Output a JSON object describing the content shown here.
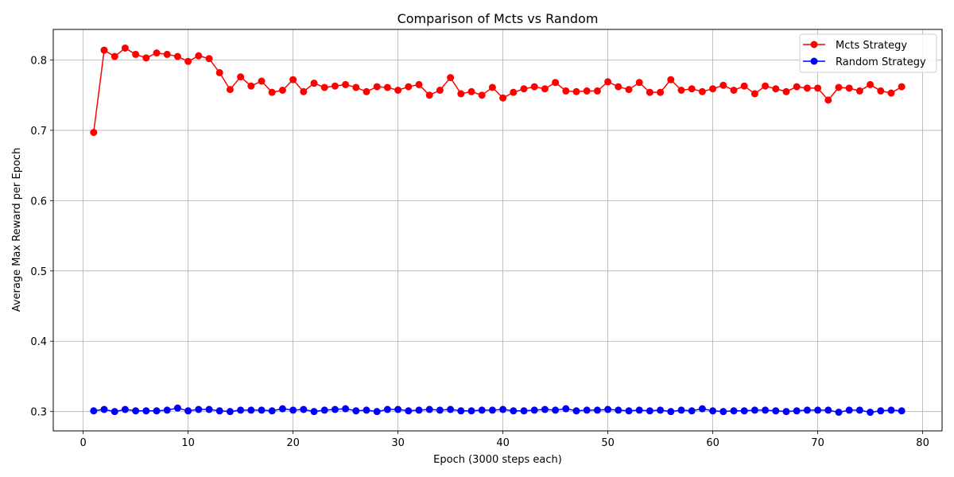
{
  "chart_data": {
    "type": "line",
    "title": "Comparison of Mcts vs Random",
    "xlabel": "Epoch (3000 steps each)",
    "ylabel": "Average Max Reward per Epoch",
    "xlim": [
      -2.85,
      81.85
    ],
    "ylim": [
      0.2725,
      0.8435
    ],
    "xticks": [
      0,
      10,
      20,
      30,
      40,
      50,
      60,
      70,
      80
    ],
    "yticks": [
      0.3,
      0.4,
      0.5,
      0.6,
      0.7,
      0.8
    ],
    "ytick_labels": [
      "0.3",
      "0.4",
      "0.5",
      "0.6",
      "0.7",
      "0.8"
    ],
    "grid": true,
    "legend_position": "top-right",
    "x": [
      1,
      2,
      3,
      4,
      5,
      6,
      7,
      8,
      9,
      10,
      11,
      12,
      13,
      14,
      15,
      16,
      17,
      18,
      19,
      20,
      21,
      22,
      23,
      24,
      25,
      26,
      27,
      28,
      29,
      30,
      31,
      32,
      33,
      34,
      35,
      36,
      37,
      38,
      39,
      40,
      41,
      42,
      43,
      44,
      45,
      46,
      47,
      48,
      49,
      50,
      51,
      52,
      53,
      54,
      55,
      56,
      57,
      58,
      59,
      60,
      61,
      62,
      63,
      64,
      65,
      66,
      67,
      68,
      69,
      70,
      71,
      72,
      73,
      74,
      75,
      76,
      77,
      78
    ],
    "series": [
      {
        "name": "Mcts Strategy",
        "color": "#ff0000",
        "values": [
          0.697,
          0.814,
          0.805,
          0.817,
          0.808,
          0.803,
          0.81,
          0.808,
          0.805,
          0.798,
          0.806,
          0.802,
          0.782,
          0.758,
          0.776,
          0.763,
          0.77,
          0.754,
          0.757,
          0.772,
          0.755,
          0.767,
          0.761,
          0.763,
          0.765,
          0.761,
          0.755,
          0.762,
          0.761,
          0.757,
          0.762,
          0.765,
          0.75,
          0.757,
          0.775,
          0.752,
          0.755,
          0.75,
          0.761,
          0.746,
          0.754,
          0.759,
          0.762,
          0.759,
          0.768,
          0.756,
          0.755,
          0.756,
          0.756,
          0.769,
          0.762,
          0.758,
          0.768,
          0.754,
          0.754,
          0.772,
          0.757,
          0.759,
          0.755,
          0.759,
          0.764,
          0.757,
          0.763,
          0.752,
          0.763,
          0.759,
          0.755,
          0.762,
          0.76,
          0.76,
          0.743,
          0.761,
          0.76,
          0.756,
          0.765,
          0.756,
          0.753,
          0.762
        ]
      },
      {
        "name": "Random Strategy",
        "color": "#0000ff",
        "values": [
          0.301,
          0.303,
          0.3,
          0.303,
          0.301,
          0.301,
          0.301,
          0.302,
          0.305,
          0.301,
          0.303,
          0.303,
          0.301,
          0.3,
          0.302,
          0.302,
          0.302,
          0.301,
          0.304,
          0.302,
          0.303,
          0.3,
          0.302,
          0.303,
          0.304,
          0.301,
          0.302,
          0.3,
          0.303,
          0.303,
          0.301,
          0.302,
          0.303,
          0.302,
          0.303,
          0.301,
          0.301,
          0.302,
          0.302,
          0.303,
          0.301,
          0.301,
          0.302,
          0.303,
          0.302,
          0.304,
          0.301,
          0.302,
          0.302,
          0.303,
          0.302,
          0.301,
          0.302,
          0.301,
          0.302,
          0.3,
          0.302,
          0.301,
          0.304,
          0.301,
          0.3,
          0.301,
          0.301,
          0.302,
          0.302,
          0.301,
          0.3,
          0.301,
          0.302,
          0.302,
          0.302,
          0.299,
          0.302,
          0.302,
          0.299,
          0.301,
          0.302,
          0.301
        ]
      }
    ]
  }
}
